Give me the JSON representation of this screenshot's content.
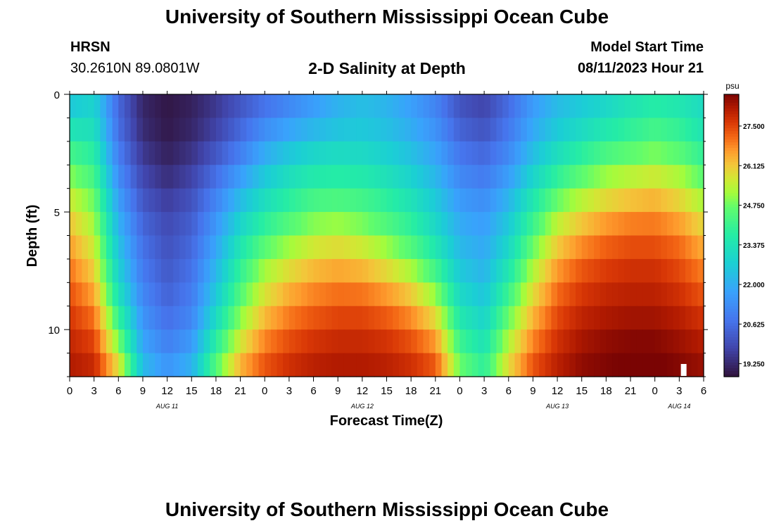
{
  "header": {
    "title": "University of Southern Mississippi Ocean Cube",
    "station": "HRSN",
    "coords": "30.2610N  89.0801W",
    "chart_title": "2-D Salinity at Depth",
    "model_label": "Model Start Time",
    "model_time": "08/11/2023 Hour 21"
  },
  "footer": {
    "title": "University of Southern Mississippi Ocean Cube"
  },
  "chart_data": {
    "type": "heatmap",
    "title": "2-D Salinity at Depth",
    "xlabel": "Forecast Time(Z)",
    "ylabel": "Depth (ft)",
    "x_tick_labels": [
      "0",
      "3",
      "6",
      "9",
      "12",
      "15",
      "18",
      "21",
      "0",
      "3",
      "6",
      "9",
      "12",
      "15",
      "18",
      "21",
      "0",
      "3",
      "6",
      "9",
      "12",
      "15",
      "18",
      "21",
      "0",
      "3",
      "6"
    ],
    "date_labels": [
      {
        "label": "AUG 11",
        "hour_index": 12
      },
      {
        "label": "AUG 12",
        "hour_index": 36
      },
      {
        "label": "AUG 13",
        "hour_index": 60
      },
      {
        "label": "AUG 14",
        "hour_index": 75
      }
    ],
    "x_range_hours": [
      0,
      78
    ],
    "y_ticks": [
      0,
      5,
      10
    ],
    "y_range_ft": [
      0,
      12
    ],
    "colorbar": {
      "unit": "psu",
      "range": [
        18.8,
        28.6
      ],
      "tick_labels": [
        "27.500",
        "26.125",
        "24.750",
        "23.375",
        "22.000",
        "20.625",
        "19.250"
      ],
      "tick_values": [
        27.5,
        26.125,
        24.75,
        23.375,
        22.0,
        20.625,
        19.25
      ]
    },
    "key_times_hours": [
      0,
      3,
      6,
      9,
      12,
      15,
      18,
      21,
      24,
      27,
      30,
      33,
      36,
      39,
      42,
      45,
      48,
      51,
      54,
      57,
      60,
      63,
      66,
      69,
      72,
      75,
      78
    ],
    "depth_levels_ft": [
      0,
      1,
      2,
      3,
      4,
      5,
      6,
      7,
      8,
      9,
      10,
      11,
      12
    ],
    "salinity_psu": [
      [
        22.2,
        22.8,
        20.5,
        19.2,
        18.9,
        19.1,
        19.5,
        20.0,
        20.5,
        21.0,
        21.5,
        22.0,
        22.3,
        22.1,
        21.6,
        21.0,
        20.0,
        19.7,
        20.5,
        21.5,
        22.2,
        22.5,
        22.8,
        23.2,
        23.5,
        23.3,
        23.0
      ],
      [
        23.0,
        23.0,
        20.5,
        19.2,
        18.9,
        19.1,
        19.6,
        20.3,
        21.0,
        21.4,
        21.8,
        22.2,
        22.4,
        22.2,
        21.8,
        21.2,
        20.2,
        19.9,
        20.7,
        21.7,
        22.4,
        22.8,
        23.2,
        23.6,
        23.9,
        23.7,
        23.2
      ],
      [
        23.8,
        23.5,
        20.8,
        19.4,
        19.0,
        19.3,
        19.9,
        20.7,
        21.6,
        22.2,
        22.6,
        22.8,
        22.8,
        22.6,
        22.2,
        21.6,
        20.6,
        20.3,
        21.0,
        22.1,
        22.9,
        23.4,
        23.9,
        24.2,
        24.5,
        24.2,
        23.6
      ],
      [
        24.6,
        24.0,
        21.1,
        19.7,
        19.2,
        19.6,
        20.4,
        21.3,
        22.3,
        22.9,
        23.3,
        23.4,
        23.3,
        23.0,
        22.6,
        22.0,
        21.0,
        20.7,
        21.4,
        22.6,
        23.5,
        24.2,
        24.7,
        25.0,
        25.2,
        24.9,
        24.2
      ],
      [
        25.3,
        24.5,
        21.5,
        20.0,
        19.5,
        19.9,
        20.9,
        22.0,
        22.9,
        23.5,
        23.9,
        24.0,
        23.9,
        23.6,
        23.1,
        22.4,
        21.4,
        21.1,
        21.9,
        23.2,
        24.3,
        25.0,
        25.5,
        25.8,
        26.0,
        25.6,
        24.9
      ],
      [
        25.9,
        25.0,
        21.9,
        20.3,
        19.8,
        20.2,
        21.3,
        22.6,
        23.5,
        24.1,
        24.6,
        24.7,
        24.5,
        24.1,
        23.6,
        22.8,
        21.8,
        21.5,
        22.4,
        23.8,
        25.1,
        25.8,
        26.3,
        26.6,
        26.7,
        26.3,
        25.6
      ],
      [
        26.4,
        25.4,
        22.3,
        20.6,
        20.0,
        20.4,
        21.7,
        23.2,
        24.2,
        24.8,
        25.3,
        25.5,
        25.2,
        24.7,
        24.1,
        23.2,
        22.1,
        21.8,
        22.8,
        24.4,
        25.8,
        26.5,
        27.0,
        27.2,
        27.2,
        26.9,
        26.2
      ],
      [
        26.8,
        25.8,
        22.6,
        20.8,
        20.1,
        20.6,
        22.0,
        23.7,
        24.9,
        25.5,
        26.0,
        26.2,
        26.0,
        25.5,
        24.8,
        23.8,
        22.4,
        22.0,
        23.2,
        25.0,
        26.4,
        27.1,
        27.4,
        27.6,
        27.6,
        27.3,
        26.7
      ],
      [
        27.2,
        26.3,
        23.0,
        21.0,
        20.3,
        20.8,
        22.4,
        24.2,
        25.5,
        26.2,
        26.6,
        26.8,
        26.7,
        26.3,
        25.7,
        24.6,
        22.8,
        22.3,
        23.8,
        25.6,
        26.9,
        27.5,
        27.8,
        27.9,
        27.9,
        27.6,
        27.1
      ],
      [
        27.5,
        26.8,
        23.6,
        21.3,
        20.5,
        21.0,
        22.8,
        24.7,
        26.0,
        26.7,
        27.1,
        27.3,
        27.3,
        27.0,
        26.5,
        25.5,
        23.3,
        22.7,
        24.4,
        26.1,
        27.3,
        27.8,
        28.0,
        28.1,
        28.1,
        27.9,
        27.5
      ],
      [
        27.8,
        27.3,
        24.4,
        21.6,
        20.8,
        21.3,
        23.4,
        25.3,
        26.6,
        27.2,
        27.5,
        27.7,
        27.7,
        27.5,
        27.1,
        26.3,
        23.8,
        23.1,
        25.0,
        26.6,
        27.6,
        28.1,
        28.3,
        28.4,
        28.4,
        28.2,
        27.9
      ],
      [
        28.0,
        27.7,
        25.3,
        22.0,
        21.2,
        21.8,
        24.1,
        26.0,
        27.1,
        27.6,
        27.9,
        28.0,
        28.0,
        27.9,
        27.6,
        27.0,
        24.4,
        23.6,
        25.6,
        27.1,
        27.9,
        28.3,
        28.5,
        28.6,
        28.6,
        28.4,
        28.2
      ],
      [
        28.2,
        28.0,
        26.3,
        22.5,
        21.7,
        22.3,
        24.8,
        26.7,
        27.5,
        27.9,
        28.1,
        28.2,
        28.2,
        28.1,
        27.9,
        27.5,
        25.0,
        24.1,
        26.1,
        27.5,
        28.1,
        28.5,
        28.6,
        28.7,
        28.7,
        28.6,
        28.4
      ]
    ]
  }
}
